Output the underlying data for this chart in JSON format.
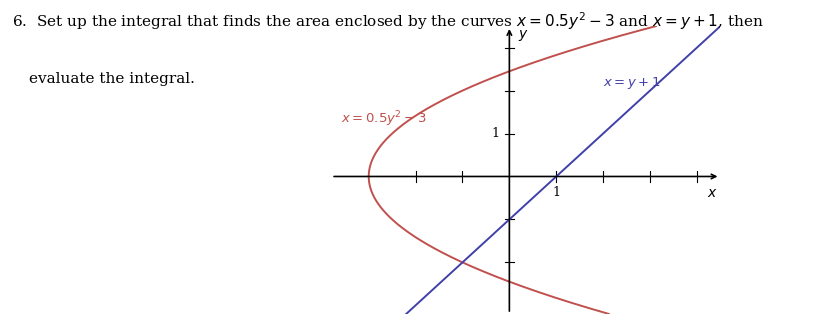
{
  "curve1_label": "$x = 0.5y^2 - 3$",
  "curve1_color": "#c0504d",
  "curve2_label": "$x = y + 1$",
  "curve2_color": "#4f6228",
  "curve2_color_blue": "#4040aa",
  "axis_color": "#000000",
  "bg_color": "#ffffff",
  "y_range": [
    -3.2,
    3.5
  ],
  "x_range": [
    -3.8,
    4.5
  ],
  "figsize": [
    8.28,
    3.27
  ],
  "dpi": 100,
  "text_fontsize": 11.0,
  "label_fontsize": 9.5,
  "axis_label_fontsize": 10
}
